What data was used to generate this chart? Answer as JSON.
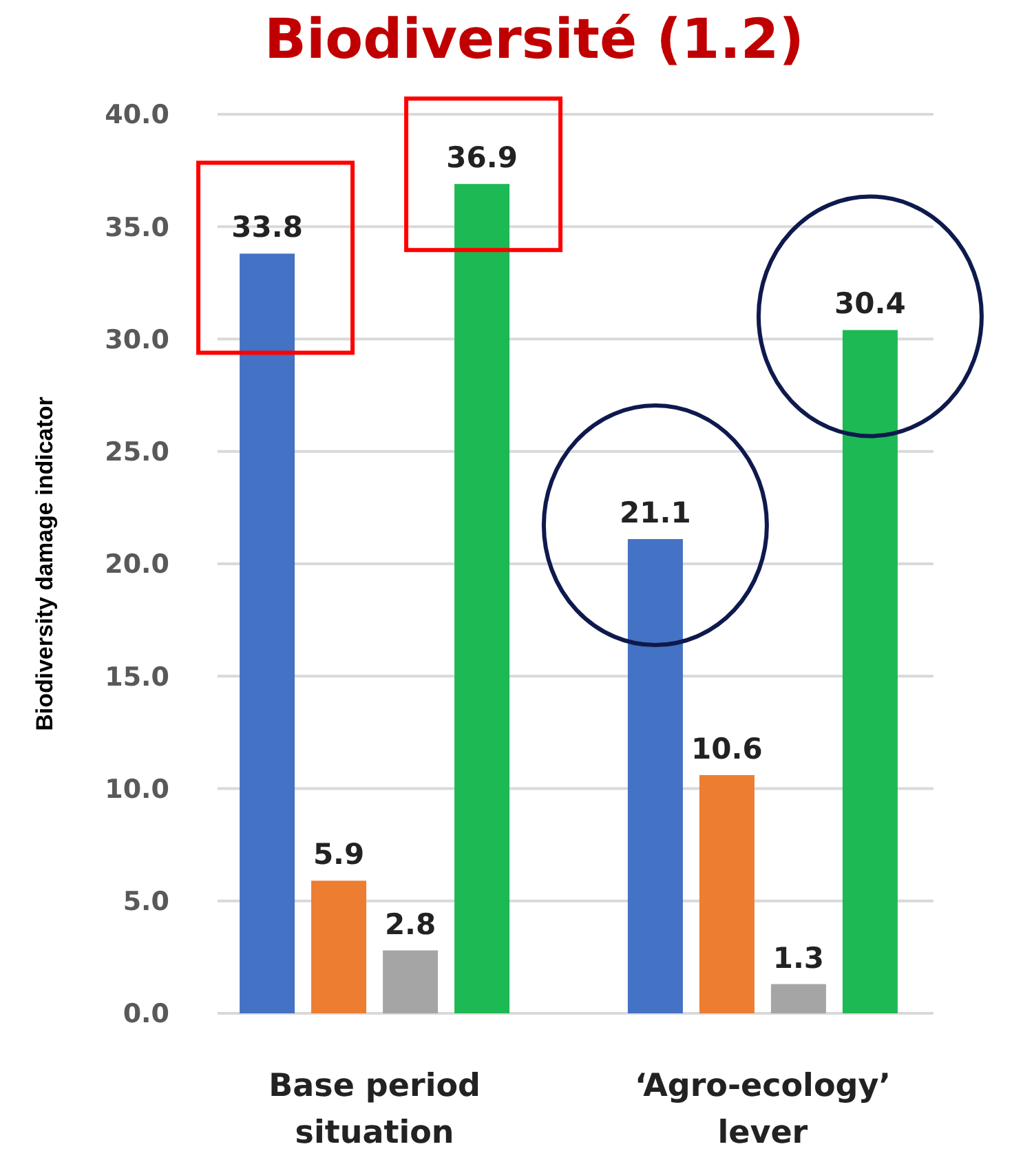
{
  "chart_data": {
    "type": "bar",
    "title": "Biodiversité (1.2)",
    "ylabel": "Biodiversity damage indicator",
    "categories": [
      "Base period\nsituation",
      "‘Agro-ecology’\nlever"
    ],
    "series": [
      {
        "color": "#4472c4",
        "values": [
          33.8,
          21.1
        ]
      },
      {
        "color": "#ed7d31",
        "values": [
          5.9,
          10.6
        ]
      },
      {
        "color": "#a5a5a5",
        "values": [
          2.8,
          1.3
        ]
      },
      {
        "color": "#1db954",
        "values": [
          36.9,
          30.4
        ]
      }
    ],
    "ylim": [
      0,
      40
    ],
    "yticks": [
      {
        "value": 0,
        "label": "0.0"
      },
      {
        "value": 5,
        "label": "5.0"
      },
      {
        "value": 10,
        "label": "10.0"
      },
      {
        "value": 15,
        "label": "15.0"
      },
      {
        "value": 20,
        "label": "20.0"
      },
      {
        "value": 25,
        "label": "25.0"
      },
      {
        "value": 30,
        "label": "30.0"
      },
      {
        "value": 35,
        "label": "35.0"
      },
      {
        "value": 40,
        "label": "40.0"
      }
    ],
    "grid": "y",
    "data_labels": true
  }
}
